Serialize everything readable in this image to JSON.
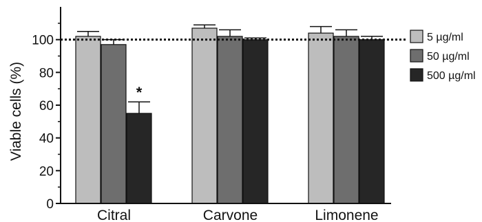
{
  "chart_data": {
    "type": "bar",
    "categories": [
      "Citral",
      "Carvone",
      "Limonene"
    ],
    "series": [
      {
        "name": "5 µg/ml",
        "values": [
          102,
          107,
          104
        ],
        "errors": [
          3,
          2,
          4
        ],
        "color": "#bdbdbd"
      },
      {
        "name": "50 µg/ml",
        "values": [
          97,
          102,
          102
        ],
        "errors": [
          3,
          4,
          4
        ],
        "color": "#6e6e6e"
      },
      {
        "name": "500 µg/ml",
        "values": [
          55,
          100,
          100
        ],
        "errors": [
          7,
          1,
          2
        ],
        "color": "#262626"
      }
    ],
    "ylabel": "Viable cells (%)",
    "xlabel": "",
    "ylim": [
      0,
      120
    ],
    "yticks": [
      0,
      20,
      40,
      60,
      80,
      100
    ],
    "reference_line": 100,
    "annotations": [
      {
        "category": "Citral",
        "series": "500 µg/ml",
        "text": "*"
      }
    ],
    "legend_position": "right",
    "grid": false
  }
}
